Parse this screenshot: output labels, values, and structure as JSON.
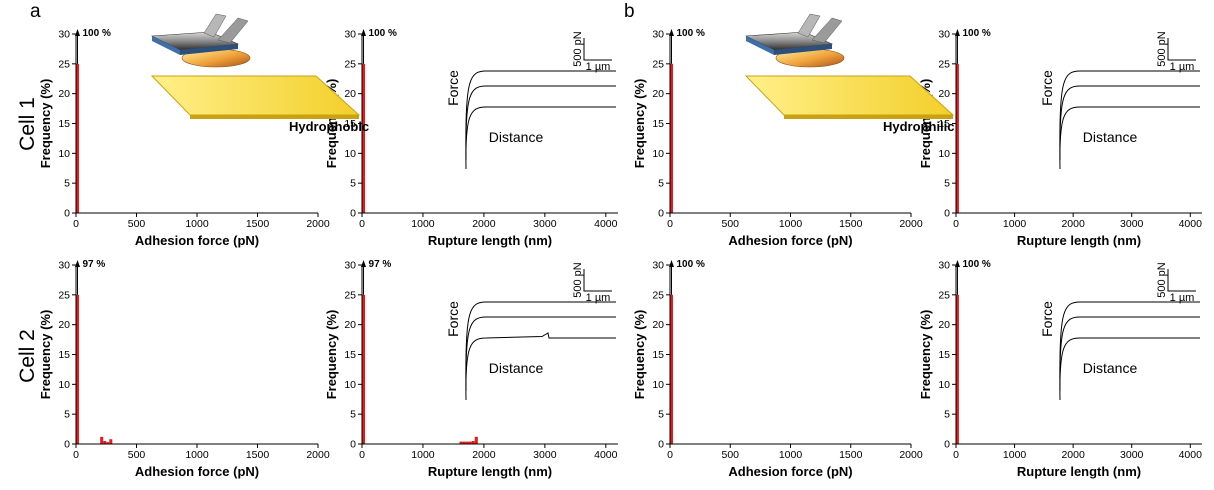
{
  "figure": {
    "panel_letters": [
      "a",
      "b"
    ],
    "row_labels": [
      "Cell 1",
      "Cell 2"
    ],
    "conditions": [
      "Hydrophobic",
      "Hydrophilic"
    ],
    "colors": {
      "bar": "#e41a1c",
      "axis": "#000000",
      "substrate_fill": "#f7dc3c",
      "substrate_edge": "#c8a210",
      "cell": "#e0901c",
      "cantilever": "#3f6fa8"
    }
  },
  "insets": {
    "force_label": "Force",
    "distance_label": "Distance",
    "scale_force": "500 pN",
    "scale_distance": "1 µm"
  },
  "chart_data": [
    {
      "id": "a-cell1-adhesion",
      "panel": "a",
      "row": "Cell 1",
      "type": "bar",
      "xlabel": "Adhesion force (pN)",
      "ylabel": "Frequency (%)",
      "xlim": [
        0,
        2000
      ],
      "ylim": [
        0,
        30
      ],
      "xticks": [
        0,
        500,
        1000,
        1500,
        2000
      ],
      "yticks": [
        0,
        5,
        10,
        15,
        20,
        25,
        30
      ],
      "bin_width": 25,
      "bars": [
        {
          "x": 12.5,
          "y": 25
        }
      ],
      "peak_label": "100 %",
      "condition": "Hydrophobic"
    },
    {
      "id": "a-cell1-rupture",
      "panel": "a",
      "row": "Cell 1",
      "type": "bar",
      "xlabel": "Rupture length (nm)",
      "ylabel": "Frequency (%)",
      "xlim": [
        0,
        4200
      ],
      "ylim": [
        0,
        30
      ],
      "xticks": [
        0,
        1000,
        2000,
        3000,
        4000
      ],
      "yticks": [
        0,
        5,
        10,
        15,
        20,
        25,
        30
      ],
      "bin_width": 50,
      "bars": [
        {
          "x": 25,
          "y": 25
        }
      ],
      "peak_label": "100 %",
      "inset_curves": "flat3"
    },
    {
      "id": "b-cell1-adhesion",
      "panel": "b",
      "row": "Cell 1",
      "type": "bar",
      "xlabel": "Adhesion force (pN)",
      "ylabel": "Frequency (%)",
      "xlim": [
        0,
        2000
      ],
      "ylim": [
        0,
        30
      ],
      "xticks": [
        0,
        500,
        1000,
        1500,
        2000
      ],
      "yticks": [
        0,
        5,
        10,
        15,
        20,
        25,
        30
      ],
      "bin_width": 25,
      "bars": [
        {
          "x": 12.5,
          "y": 25
        }
      ],
      "peak_label": "100 %",
      "condition": "Hydrophilic"
    },
    {
      "id": "b-cell1-rupture",
      "panel": "b",
      "row": "Cell 1",
      "type": "bar",
      "xlabel": "Rupture length (nm)",
      "ylabel": "Frequency (%)",
      "xlim": [
        0,
        4200
      ],
      "ylim": [
        0,
        30
      ],
      "xticks": [
        0,
        1000,
        2000,
        3000,
        4000
      ],
      "yticks": [
        0,
        5,
        10,
        15,
        20,
        25,
        30
      ],
      "bin_width": 50,
      "bars": [
        {
          "x": 25,
          "y": 25
        }
      ],
      "peak_label": "100 %",
      "inset_curves": "flat3"
    },
    {
      "id": "a-cell2-adhesion",
      "panel": "a",
      "row": "Cell 2",
      "type": "bar",
      "xlabel": "Adhesion force (pN)",
      "ylabel": "Frequency (%)",
      "xlim": [
        0,
        2000
      ],
      "ylim": [
        0,
        30
      ],
      "xticks": [
        0,
        500,
        1000,
        1500,
        2000
      ],
      "yticks": [
        0,
        5,
        10,
        15,
        20,
        25,
        30
      ],
      "bin_width": 25,
      "bars": [
        {
          "x": 12.5,
          "y": 25
        },
        {
          "x": 212.5,
          "y": 1.2
        },
        {
          "x": 237.5,
          "y": 0.5
        },
        {
          "x": 262.5,
          "y": 0.3
        },
        {
          "x": 287.5,
          "y": 0.8
        }
      ],
      "peak_label": "97 %"
    },
    {
      "id": "a-cell2-rupture",
      "panel": "a",
      "row": "Cell 2",
      "type": "bar",
      "xlabel": "Rupture length (nm)",
      "ylabel": "Frequency (%)",
      "xlim": [
        0,
        4200
      ],
      "ylim": [
        0,
        30
      ],
      "xticks": [
        0,
        1000,
        2000,
        3000,
        4000
      ],
      "yticks": [
        0,
        5,
        10,
        15,
        20,
        25,
        30
      ],
      "bin_width": 50,
      "bars": [
        {
          "x": 25,
          "y": 25
        },
        {
          "x": 1625,
          "y": 0.4
        },
        {
          "x": 1675,
          "y": 0.4
        },
        {
          "x": 1725,
          "y": 0.4
        },
        {
          "x": 1775,
          "y": 0.4
        },
        {
          "x": 1825,
          "y": 0.5
        },
        {
          "x": 1875,
          "y": 1.2
        }
      ],
      "peak_label": "97 %",
      "inset_curves": "bump3"
    },
    {
      "id": "b-cell2-adhesion",
      "panel": "b",
      "row": "Cell 2",
      "type": "bar",
      "xlabel": "Adhesion force (pN)",
      "ylabel": "Frequency (%)",
      "xlim": [
        0,
        2000
      ],
      "ylim": [
        0,
        30
      ],
      "xticks": [
        0,
        500,
        1000,
        1500,
        2000
      ],
      "yticks": [
        0,
        5,
        10,
        15,
        20,
        25,
        30
      ],
      "bin_width": 25,
      "bars": [
        {
          "x": 12.5,
          "y": 25
        }
      ],
      "peak_label": "100 %"
    },
    {
      "id": "b-cell2-rupture",
      "panel": "b",
      "row": "Cell 2",
      "type": "bar",
      "xlabel": "Rupture length (nm)",
      "ylabel": "Frequency (%)",
      "xlim": [
        0,
        4200
      ],
      "ylim": [
        0,
        30
      ],
      "xticks": [
        0,
        1000,
        2000,
        3000,
        4000
      ],
      "yticks": [
        0,
        5,
        10,
        15,
        20,
        25,
        30
      ],
      "bin_width": 50,
      "bars": [
        {
          "x": 25,
          "y": 25
        }
      ],
      "peak_label": "100 %",
      "inset_curves": "flat3"
    }
  ]
}
